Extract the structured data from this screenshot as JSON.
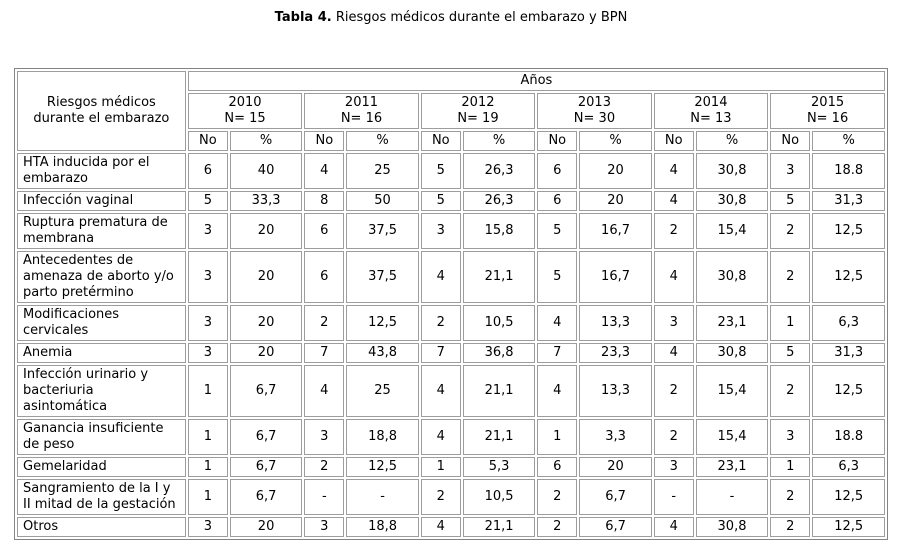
{
  "title": {
    "bold": "Tabla 4.",
    "rest": " Riesgos médicos durante el embarazo y BPN"
  },
  "table": {
    "corner_header": "Riesgos médicos durante el embarazo",
    "anos_header": "Años",
    "years": [
      {
        "year": "2010",
        "n": "N= 15"
      },
      {
        "year": "2011",
        "n": "N= 16"
      },
      {
        "year": "2012",
        "n": "N= 19"
      },
      {
        "year": "2013",
        "n": "N= 30"
      },
      {
        "year": "2014",
        "n": "N= 13"
      },
      {
        "year": "2015",
        "n": "N= 16"
      }
    ],
    "subheaders": {
      "no": "No",
      "pct": "%"
    },
    "rows": [
      {
        "label": "HTA inducida por el embarazo",
        "values": [
          "6",
          "40",
          "4",
          "25",
          "5",
          "26,3",
          "6",
          "20",
          "4",
          "30,8",
          "3",
          "18.8"
        ]
      },
      {
        "label": "Infección vaginal",
        "values": [
          "5",
          "33,3",
          "8",
          "50",
          "5",
          "26,3",
          "6",
          "20",
          "4",
          "30,8",
          "5",
          "31,3"
        ]
      },
      {
        "label": "Ruptura prematura de membrana",
        "values": [
          "3",
          "20",
          "6",
          "37,5",
          "3",
          "15,8",
          "5",
          "16,7",
          "2",
          "15,4",
          "2",
          "12,5"
        ]
      },
      {
        "label": "Antecedentes de amenaza de aborto y/o parto pretérmino",
        "values": [
          "3",
          "20",
          "6",
          "37,5",
          "4",
          "21,1",
          "5",
          "16,7",
          "4",
          "30,8",
          "2",
          "12,5"
        ]
      },
      {
        "label": "Modificaciones cervicales",
        "values": [
          "3",
          "20",
          "2",
          "12,5",
          "2",
          "10,5",
          "4",
          "13,3",
          "3",
          "23,1",
          "1",
          "6,3"
        ]
      },
      {
        "label": "Anemia",
        "values": [
          "3",
          "20",
          "7",
          "43,8",
          "7",
          "36,8",
          "7",
          "23,3",
          "4",
          "30,8",
          "5",
          "31,3"
        ]
      },
      {
        "label": "Infección urinario y bacteriuria asintomática",
        "values": [
          "1",
          "6,7",
          "4",
          "25",
          "4",
          "21,1",
          "4",
          "13,3",
          "2",
          "15,4",
          "2",
          "12,5"
        ]
      },
      {
        "label": "Ganancia insuficiente de peso",
        "values": [
          "1",
          "6,7",
          "3",
          "18,8",
          "4",
          "21,1",
          "1",
          "3,3",
          "2",
          "15,4",
          "3",
          "18.8"
        ]
      },
      {
        "label": "Gemelaridad",
        "values": [
          "1",
          "6,7",
          "2",
          "12,5",
          "1",
          "5,3",
          "6",
          "20",
          "3",
          "23,1",
          "1",
          "6,3"
        ]
      },
      {
        "label": "Sangramiento de la I y II mitad de la gestación",
        "values": [
          "1",
          "6,7",
          "-",
          "-",
          "2",
          "10,5",
          "2",
          "6,7",
          "-",
          "-",
          "2",
          "12,5"
        ]
      },
      {
        "label": "Otros",
        "values": [
          "3",
          "20",
          "3",
          "18,8",
          "4",
          "21,1",
          "2",
          "6,7",
          "4",
          "30,8",
          "2",
          "12,5"
        ]
      }
    ]
  },
  "colors": {
    "background": "#ffffff",
    "text": "#000000",
    "cell_border": "#9d9d9d",
    "outer_border": "#848484"
  }
}
